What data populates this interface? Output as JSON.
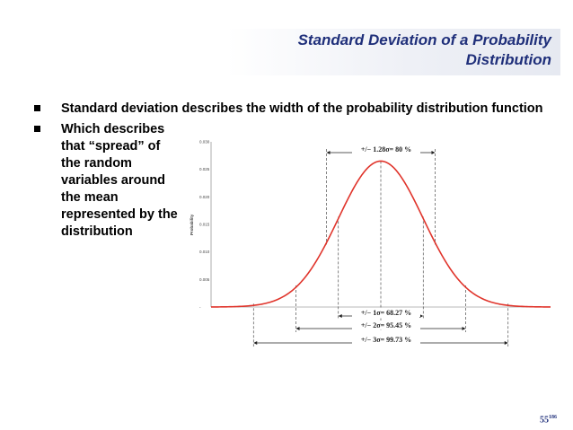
{
  "slide": {
    "title_line1": "Standard Deviation of a Probability",
    "title_line2": "Distribution",
    "bullets": [
      "Standard deviation describes the width of the probability distribution function",
      "Which describes that “spread” of the random variables around the mean represented by the distribution"
    ],
    "page_number": "55",
    "page_total": "186"
  },
  "chart_data": {
    "type": "line",
    "title": "",
    "xlabel": "",
    "ylabel": "Probability",
    "yticks": [
      "0.030",
      "0.025",
      "0.020",
      "0.015",
      "0.010",
      "0.005",
      "-"
    ],
    "ylim": [
      0,
      0.03
    ],
    "xlim": [
      -4,
      4
    ],
    "series": [
      {
        "curve": "normal",
        "mean": 0,
        "sigma": 1,
        "peak": 0.0265,
        "color": "#e0342b"
      }
    ],
    "bands": [
      {
        "label": "+/−  1.28σ= 80  %",
        "sigma_multiple": 1.28,
        "position": "top"
      },
      {
        "label": "+/−  1σ= 68.27  %",
        "sigma_multiple": 1,
        "position": "bottom"
      },
      {
        "label": "+/−  2σ= 95.45  %",
        "sigma_multiple": 2,
        "position": "bottom"
      },
      {
        "label": "+/−  3σ= 99.73  %",
        "sigma_multiple": 3,
        "position": "bottom"
      }
    ],
    "grid": false
  },
  "colors": {
    "title": "#1f2f7a",
    "curve": "#e0342b"
  }
}
